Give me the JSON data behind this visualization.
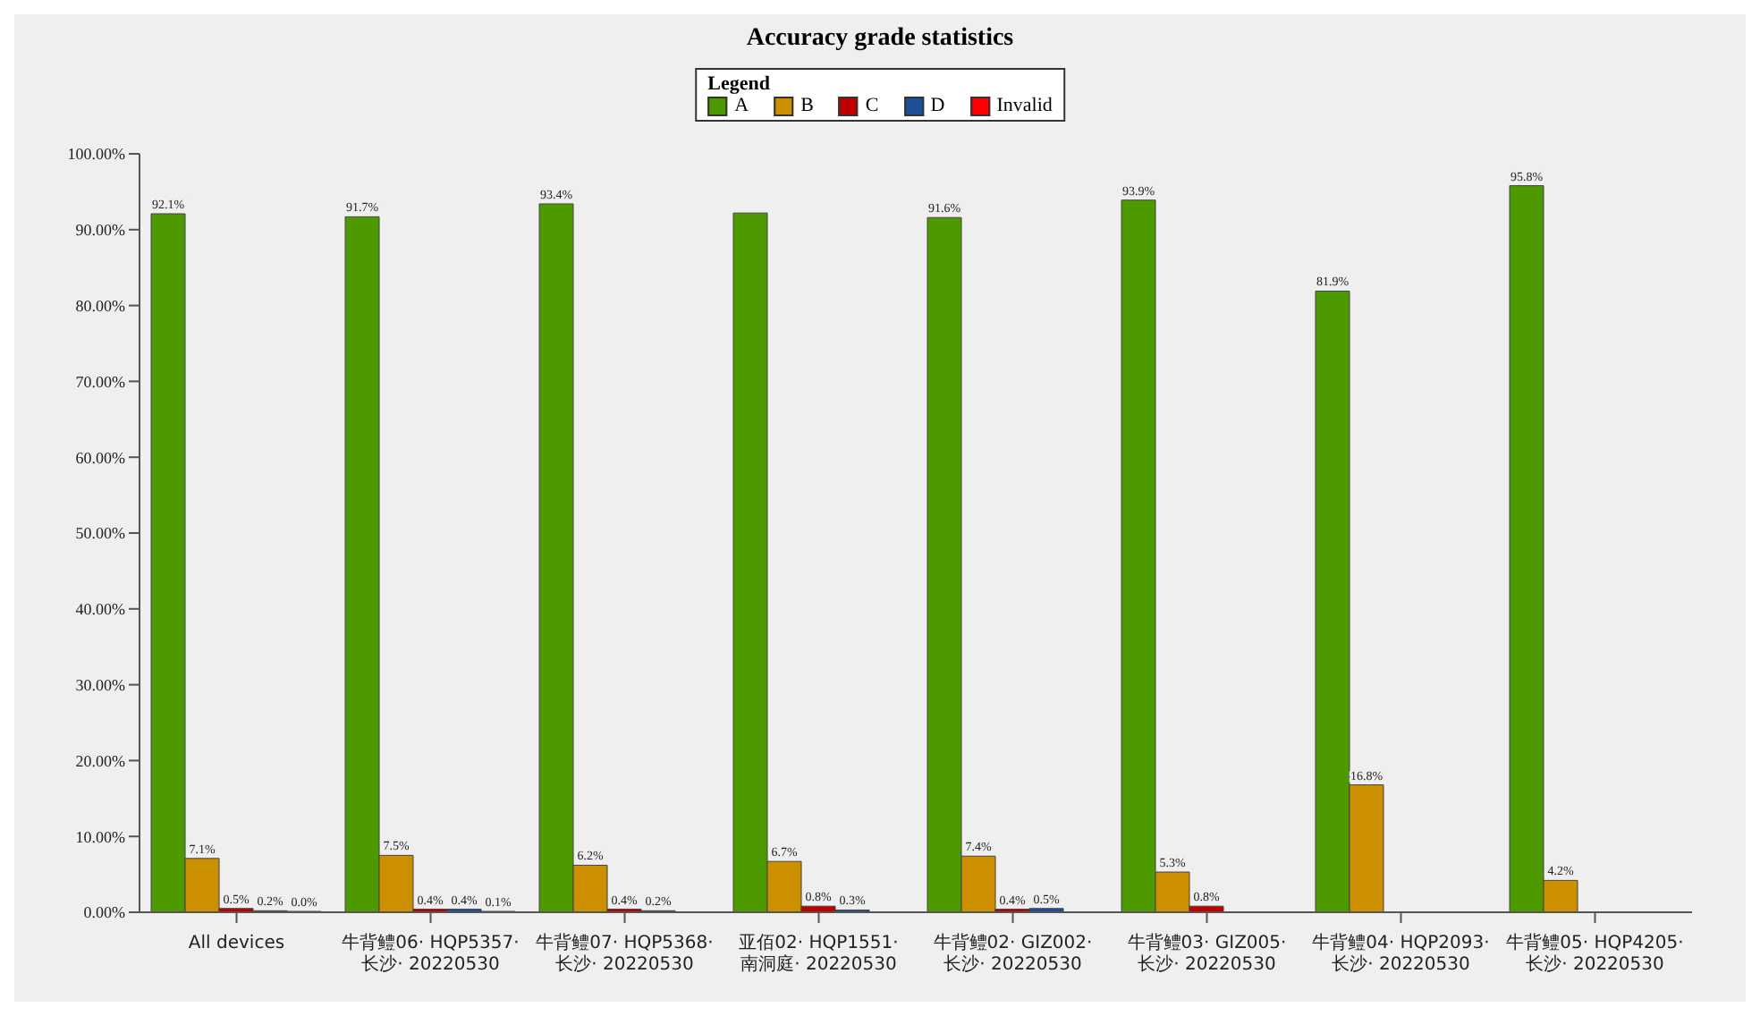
{
  "chart_data": {
    "type": "bar",
    "title": "Accuracy grade statistics",
    "categories": [
      "All devices",
      "牛背鳢06· HQP5357· 长沙· 20220530",
      "牛背鳢07· HQP5368· 长沙· 20220530",
      "亚佰02· HQP1551· 南洞庭· 20220530",
      "牛背鳢02· GIZ002· 长沙· 20220530",
      "牛背鳢03· GIZ005· 长沙· 20220530",
      "牛背鳢04· HQP2093· 长沙· 20220530",
      "牛背鳢05· HQP4205· 长沙· 20220530"
    ],
    "series": [
      {
        "name": "A",
        "color": "#4c9a00",
        "values": [
          92.1,
          91.7,
          93.4,
          92.2,
          91.6,
          93.9,
          81.9,
          95.8
        ],
        "value_labels": [
          "92.1%",
          "91.7%",
          "93.4%",
          null,
          "91.6%",
          "93.9%",
          "81.9%",
          "95.8%"
        ]
      },
      {
        "name": "B",
        "color": "#cc8f00",
        "values": [
          7.1,
          7.5,
          6.2,
          6.7,
          7.4,
          5.3,
          16.8,
          4.2
        ],
        "value_labels": [
          "7.1%",
          "7.5%",
          "6.2%",
          "6.7%",
          "7.4%",
          "5.3%",
          "16.8%",
          "4.2%"
        ]
      },
      {
        "name": "C",
        "color": "#c00000",
        "values": [
          0.5,
          0.4,
          0.4,
          0.8,
          0.4,
          0.8,
          null,
          null
        ],
        "value_labels": [
          "0.5%",
          "0.4%",
          "0.4%",
          "0.8%",
          "0.4%",
          "0.8%",
          null,
          null
        ]
      },
      {
        "name": "D",
        "color": "#1f4e99",
        "values": [
          0.2,
          0.4,
          0.2,
          0.3,
          0.5,
          null,
          null,
          null
        ],
        "value_labels": [
          "0.2%",
          "0.4%",
          "0.2%",
          "0.3%",
          "0.5%",
          null,
          null,
          null
        ]
      },
      {
        "name": "Invalid",
        "color": "#ff0000",
        "values": [
          0.0,
          0.1,
          null,
          null,
          null,
          null,
          null,
          null
        ],
        "value_labels": [
          "0.0%",
          "0.1%",
          null,
          null,
          null,
          null,
          null,
          null
        ]
      }
    ],
    "legend_title": "Legend",
    "legend": "top",
    "ylim": [
      0,
      100
    ],
    "yticks": [
      {
        "value": 0,
        "label": "0.00%"
      },
      {
        "value": 10,
        "label": "10.00%"
      },
      {
        "value": 20,
        "label": "20.00%"
      },
      {
        "value": 30,
        "label": "30.00%"
      },
      {
        "value": 40,
        "label": "40.00%"
      },
      {
        "value": 50,
        "label": "50.00%"
      },
      {
        "value": 60,
        "label": "60.00%"
      },
      {
        "value": 70,
        "label": "70.00%"
      },
      {
        "value": 80,
        "label": "80.00%"
      },
      {
        "value": 90,
        "label": "90.00%"
      },
      {
        "value": 100,
        "label": "100.00%"
      }
    ]
  }
}
